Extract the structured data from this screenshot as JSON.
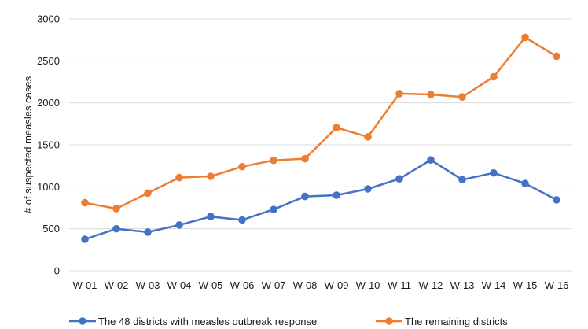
{
  "chart_data": {
    "type": "line",
    "title": "",
    "xlabel": "",
    "ylabel": "# of suspected measles cases",
    "ylim": [
      0,
      3000
    ],
    "yticks": [
      0,
      500,
      1000,
      1500,
      2000,
      2500,
      3000
    ],
    "grid": true,
    "legend_position": "bottom",
    "categories": [
      "W-01",
      "W-02",
      "W-03",
      "W-04",
      "W-05",
      "W-06",
      "W-07",
      "W-08",
      "W-09",
      "W-10",
      "W-11",
      "W-12",
      "W-13",
      "W-14",
      "W-15",
      "W-16"
    ],
    "series": [
      {
        "name": "The 48 districts with measles outbreak response",
        "color": "#4472c4",
        "values": [
          375,
          500,
          460,
          545,
          645,
          605,
          730,
          885,
          900,
          975,
          1095,
          1320,
          1085,
          1165,
          1040,
          845
        ]
      },
      {
        "name": "The remaining districts",
        "color": "#ed7d31",
        "values": [
          810,
          740,
          925,
          1110,
          1125,
          1240,
          1315,
          1335,
          1705,
          1595,
          2110,
          2100,
          2070,
          2310,
          2780,
          2555
        ]
      }
    ]
  }
}
